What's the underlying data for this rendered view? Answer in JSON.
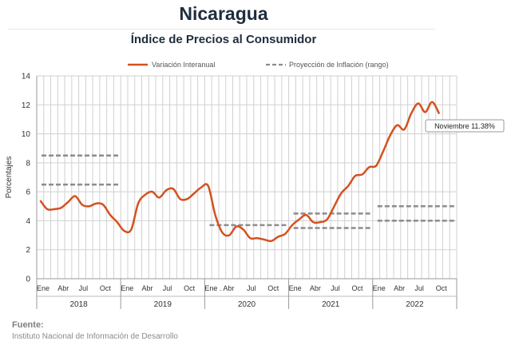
{
  "header": {
    "title": "Nicaragua",
    "subtitle": "Índice de Precios al Consumidor"
  },
  "footer": {
    "source_label": "Fuente:",
    "source_text": "Instituto Nacional de Información de Desarrollo"
  },
  "chart_data": {
    "type": "line",
    "ylabel": "Porcentajes",
    "ylim": [
      0,
      14
    ],
    "yticks": [
      0,
      2,
      4,
      6,
      8,
      10,
      12,
      14
    ],
    "grid": true,
    "legend_position": "top",
    "x_month_labels": [
      "Ene",
      "Abr",
      "Jul",
      "Oct",
      "Ene",
      "Abr",
      "Jul",
      "Oct",
      "Ene . Abr",
      "Jul",
      "Oct",
      "Ene",
      "Abr",
      "Jul",
      "Oct",
      "Ene",
      "Abr",
      "Jul",
      "Oct"
    ],
    "x_month_label_positions": [
      0,
      3,
      6,
      9,
      12,
      15,
      18,
      21,
      24,
      30,
      33,
      36,
      39,
      42,
      45,
      48,
      51,
      54,
      57
    ],
    "x_years": [
      "2018",
      "2019",
      "2020",
      "2021",
      "2022"
    ],
    "series": [
      {
        "name": "Variación Interanual",
        "type": "line",
        "color": "#d4511f",
        "x": [
          0,
          1,
          2,
          3,
          4,
          5,
          6,
          7,
          8,
          9,
          10,
          11,
          12,
          13,
          14,
          15,
          16,
          17,
          18,
          19,
          20,
          21,
          22,
          23,
          24,
          25,
          26,
          27,
          28,
          29,
          30,
          31,
          32,
          33,
          34,
          35,
          36,
          37,
          38,
          39,
          40,
          41,
          42,
          43,
          44,
          45,
          46,
          47,
          48,
          49,
          50,
          51,
          52,
          53,
          54,
          55,
          56,
          57,
          58
        ],
        "values": [
          5.4,
          4.8,
          4.8,
          4.9,
          5.3,
          5.7,
          5.1,
          5.0,
          5.2,
          5.1,
          4.4,
          3.9,
          3.3,
          3.4,
          5.2,
          5.8,
          6.0,
          5.6,
          6.1,
          6.2,
          5.5,
          5.5,
          5.9,
          6.3,
          6.4,
          4.4,
          3.2,
          3.0,
          3.6,
          3.4,
          2.8,
          2.8,
          2.7,
          2.6,
          2.9,
          3.1,
          3.7,
          4.1,
          4.4,
          3.9,
          3.9,
          4.1,
          5.0,
          5.9,
          6.4,
          7.1,
          7.2,
          7.7,
          7.8,
          8.8,
          9.9,
          10.6,
          10.3,
          11.4,
          12.1,
          11.5,
          12.2,
          11.38,
          null
        ]
      },
      {
        "name": "Proyección de Inflación (rango)",
        "type": "dashed-range",
        "color": "#8c8c8c",
        "segments": [
          {
            "x_start": 0,
            "x_end": 11,
            "low": 6.5,
            "high": 8.5
          },
          {
            "x_start": 24,
            "x_end": 35,
            "low": 3.7,
            "high": 3.7
          },
          {
            "x_start": 36,
            "x_end": 47,
            "low": 3.5,
            "high": 4.5
          },
          {
            "x_start": 48,
            "x_end": 59,
            "low": 4.0,
            "high": 5.0
          }
        ]
      }
    ],
    "annotation": {
      "text": "Noviembre 11.38%",
      "x": 58,
      "y": 11.38
    }
  }
}
